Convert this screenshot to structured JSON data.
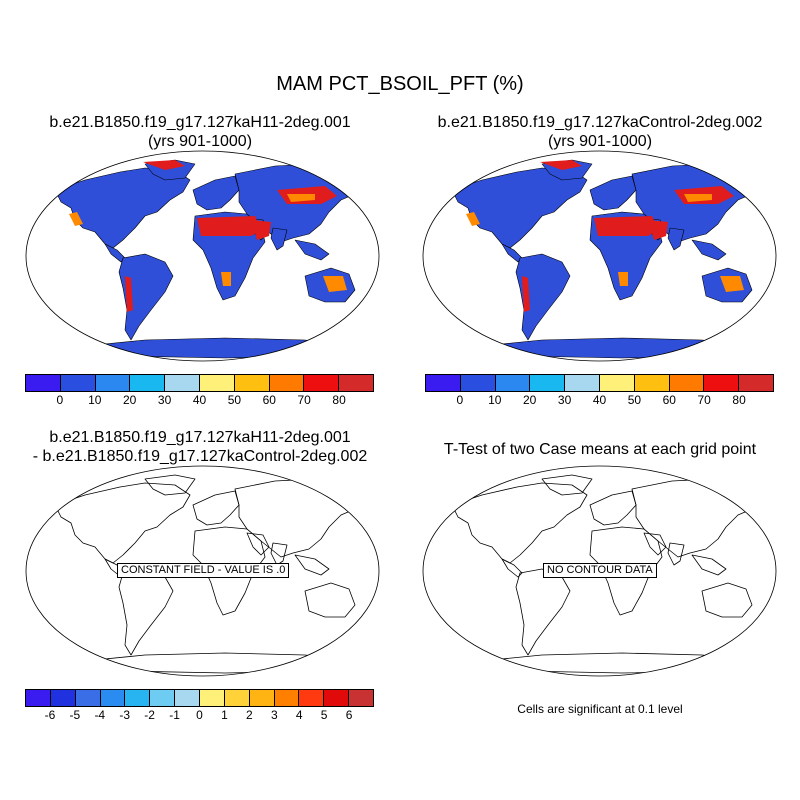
{
  "figure": {
    "title": "MAM PCT_BSOIL_PFT (%)"
  },
  "panels": [
    {
      "title_line1": "b.e21.B1850.f19_g17.127kaH11-2deg.001",
      "title_line2": "(yrs 901-1000)",
      "kind": "field",
      "projection": "Robinson"
    },
    {
      "title_line1": "b.e21.B1850.f19_g17.127kaControl-2deg.002",
      "title_line2": "(yrs 901-1000)",
      "kind": "field",
      "projection": "Robinson"
    },
    {
      "title_line1": "b.e21.B1850.f19_g17.127kaH11-2deg.001",
      "title_line2": "- b.e21.B1850.f19_g17.127kaControl-2deg.002",
      "kind": "difference",
      "projection": "Robinson",
      "note": "CONSTANT FIELD - VALUE IS .0"
    },
    {
      "title_line1": "T-Test of two Case means at each grid point",
      "title_line2": "",
      "kind": "ttest",
      "projection": "Robinson",
      "note": "NO CONTOUR DATA"
    }
  ],
  "colorbar_field": {
    "labels": [
      "0",
      "10",
      "20",
      "30",
      "40",
      "50",
      "60",
      "70",
      "80"
    ],
    "colors": [
      "#3a1cf0",
      "#2a4fe0",
      "#2a88f0",
      "#1ab8f0",
      "#a8d8f0",
      "#fff07a",
      "#ffbf10",
      "#ff7a00",
      "#ee1010",
      "#d42a2a"
    ]
  },
  "colorbar_diff": {
    "labels": [
      "-6",
      "-5",
      "-4",
      "-3",
      "-2",
      "-1",
      "0",
      "1",
      "2",
      "3",
      "4",
      "5",
      "6"
    ],
    "colors": [
      "#3a1cf0",
      "#2032e0",
      "#3a6ee6",
      "#2a8cf0",
      "#28b4f0",
      "#6ecbf2",
      "#a8d8f0",
      "#fff07a",
      "#ffd23a",
      "#ffb414",
      "#ff8000",
      "#ff3a10",
      "#e00a0a",
      "#c83232"
    ]
  },
  "significance_note": "Cells are significant at 0.1 level",
  "map_colors": {
    "ocean": "#ffffff",
    "land_background": "#2f4fd8",
    "desert_high": "#e01c1c",
    "desert_mid": "#ff8a00",
    "desert_low": "#fff07a",
    "coastline": "#000000"
  }
}
